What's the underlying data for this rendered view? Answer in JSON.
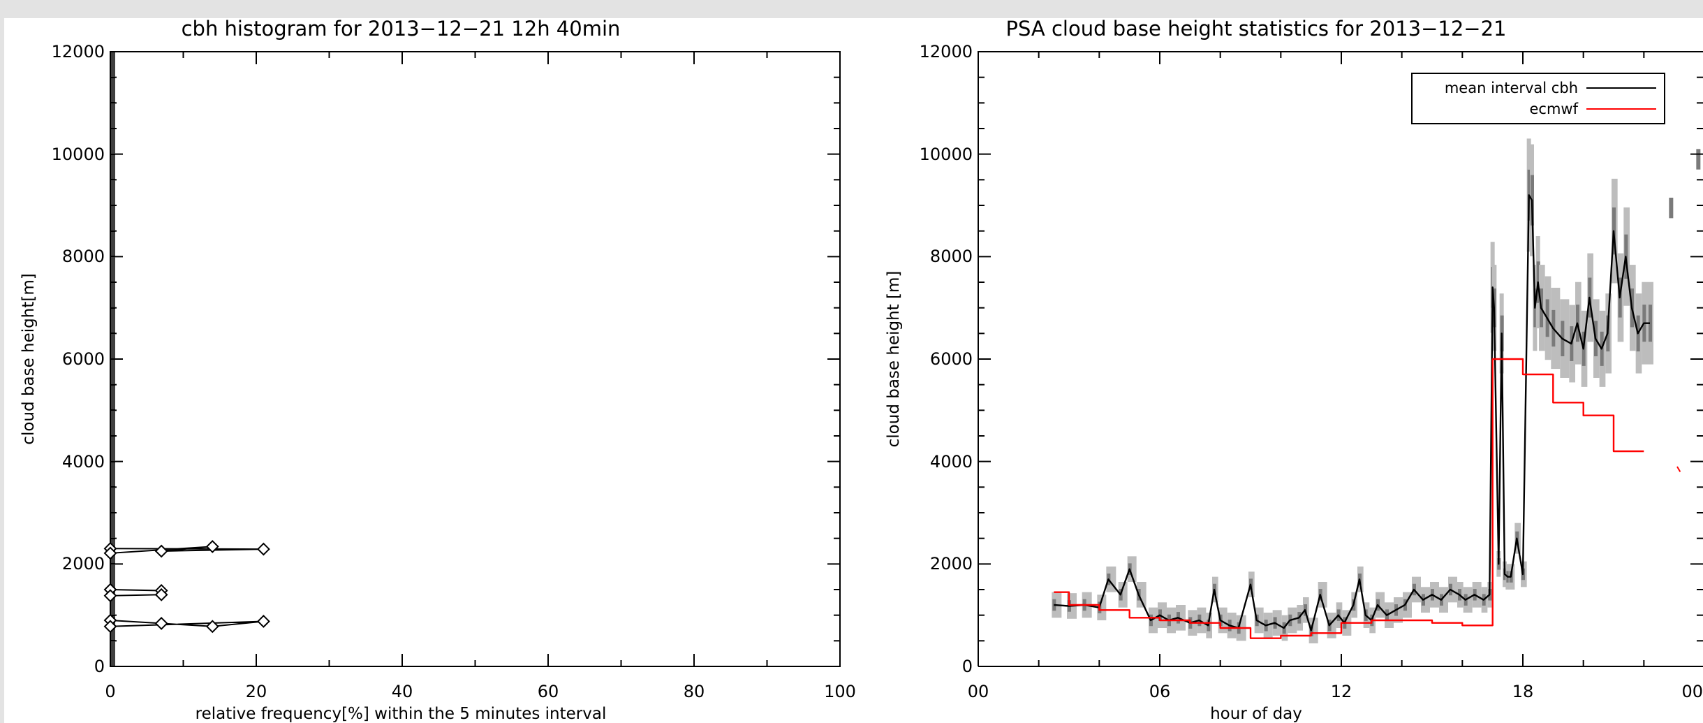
{
  "chart_data": [
    {
      "type": "line",
      "title": "cbh histogram for 2013−12−21 12h 40min",
      "xlabel": "relative frequency[%] within the 5 minutes interval",
      "ylabel": "cloud base height[m]",
      "xlim": [
        0,
        100
      ],
      "ylim": [
        0,
        12000
      ],
      "x_ticks": [
        "0",
        "20",
        "40",
        "60",
        "80",
        "100"
      ],
      "y_ticks": [
        "0",
        "2000",
        "4000",
        "6000",
        "8000",
        "10000",
        "12000"
      ],
      "grid": false,
      "markers": "diamond",
      "series": [
        {
          "x": [
            0,
            21,
            7,
            14,
            0,
            0,
            7,
            7,
            0,
            0,
            7,
            14,
            21,
            0
          ],
          "y": [
            2300,
            2290,
            2250,
            2340,
            2210,
            1500,
            1480,
            1400,
            1380,
            900,
            840,
            780,
            880,
            780
          ]
        }
      ]
    },
    {
      "type": "line",
      "title": "PSA cloud base height statistics for 2013−12−21",
      "xlabel": "hour of day",
      "ylabel": "cloud base height [m]",
      "xlim": [
        0,
        24
      ],
      "ylim": [
        0,
        12000
      ],
      "x_ticks": [
        "00",
        "06",
        "12",
        "18",
        "00"
      ],
      "y_ticks": [
        "0",
        "2000",
        "4000",
        "6000",
        "8000",
        "10000",
        "12000"
      ],
      "grid": false,
      "legend": "top-right",
      "series": [
        {
          "name": "mean interval cbh",
          "color": "#000000",
          "x": [
            2.5,
            3.0,
            3.5,
            4.0,
            4.3,
            4.7,
            5.0,
            5.3,
            5.7,
            6.0,
            6.3,
            6.6,
            7.0,
            7.3,
            7.6,
            7.8,
            8.0,
            8.3,
            8.6,
            9.0,
            9.2,
            9.5,
            9.8,
            10.1,
            10.3,
            10.6,
            10.8,
            11.0,
            11.3,
            11.6,
            11.9,
            12.1,
            12.4,
            12.6,
            12.8,
            13.0,
            13.2,
            13.5,
            13.8,
            14.1,
            14.4,
            14.7,
            15.0,
            15.3,
            15.6,
            15.9,
            16.1,
            16.4,
            16.7,
            16.9,
            17.0,
            17.05,
            17.2,
            17.3,
            17.4,
            17.5,
            17.6,
            17.8,
            18.0,
            18.2,
            18.3,
            18.4,
            18.5,
            18.6,
            18.8,
            19.0,
            19.3,
            19.6,
            19.8,
            20.0,
            20.2,
            20.4,
            20.6,
            20.8,
            21.0,
            21.2,
            21.4,
            21.6,
            21.8,
            22.0,
            22.2
          ],
          "y": [
            1200,
            1180,
            1200,
            1150,
            1700,
            1400,
            1900,
            1400,
            900,
            1000,
            900,
            950,
            850,
            900,
            800,
            1500,
            900,
            800,
            750,
            1600,
            900,
            800,
            850,
            750,
            900,
            950,
            1100,
            700,
            1400,
            800,
            1000,
            850,
            1200,
            1700,
            1000,
            900,
            1200,
            1000,
            1100,
            1200,
            1500,
            1300,
            1400,
            1300,
            1500,
            1400,
            1300,
            1400,
            1300,
            1400,
            7400,
            7000,
            2000,
            6500,
            1800,
            1750,
            1750,
            2500,
            1800,
            9200,
            9100,
            7000,
            7500,
            7000,
            6800,
            6600,
            6400,
            6300,
            6700,
            6200,
            7200,
            6400,
            6200,
            6500,
            8500,
            7200,
            8000,
            7000,
            6500,
            6700,
            6700
          ]
        },
        {
          "name": "ecmwf",
          "color": "#ff0000",
          "x": [
            2.5,
            3.0,
            3.0,
            4.0,
            4.0,
            5.0,
            5.0,
            6.0,
            6.0,
            7.0,
            7.0,
            8.0,
            8.0,
            9.0,
            9.0,
            10.0,
            10.0,
            11.0,
            11.0,
            12.0,
            12.0,
            13.0,
            13.0,
            14.0,
            14.0,
            15.0,
            15.0,
            16.0,
            16.0,
            17.0,
            17.0,
            18.0,
            18.0,
            19.0,
            19.0,
            20.0,
            20.0,
            21.0,
            21.0,
            22.0
          ],
          "y": [
            1450,
            1450,
            1200,
            1200,
            1100,
            1100,
            950,
            950,
            900,
            900,
            850,
            850,
            750,
            750,
            550,
            550,
            600,
            600,
            650,
            650,
            850,
            850,
            900,
            900,
            900,
            900,
            850,
            850,
            800,
            800,
            6000,
            6000,
            5700,
            5700,
            5150,
            5150,
            4900,
            4900,
            4200,
            4200
          ]
        }
      ]
    }
  ]
}
